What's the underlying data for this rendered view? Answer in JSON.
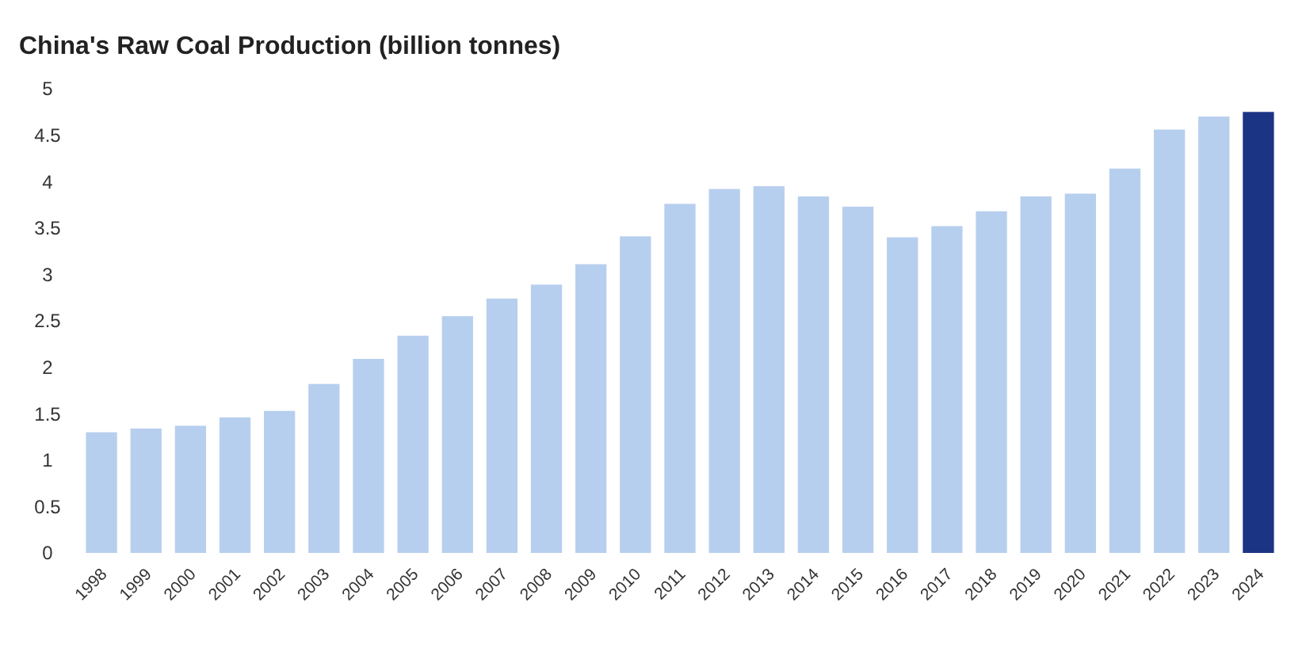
{
  "chart_data": {
    "type": "bar",
    "title": "China's Raw Coal Production (billion tonnes)",
    "categories": [
      "1998",
      "1999",
      "2000",
      "2001",
      "2002",
      "2003",
      "2004",
      "2005",
      "2006",
      "2007",
      "2008",
      "2009",
      "2010",
      "2011",
      "2012",
      "2013",
      "2014",
      "2015",
      "2016",
      "2017",
      "2018",
      "2019",
      "2020",
      "2021",
      "2022",
      "2023",
      "2024"
    ],
    "values": [
      1.3,
      1.34,
      1.37,
      1.46,
      1.53,
      1.82,
      2.09,
      2.34,
      2.55,
      2.74,
      2.89,
      3.11,
      3.41,
      3.76,
      3.92,
      3.95,
      3.84,
      3.73,
      3.4,
      3.52,
      3.68,
      3.84,
      3.87,
      4.14,
      4.56,
      4.7,
      4.75
    ],
    "colors": [
      "#b7cfee",
      "#b7cfee",
      "#b7cfee",
      "#b7cfee",
      "#b7cfee",
      "#b7cfee",
      "#b7cfee",
      "#b7cfee",
      "#b7cfee",
      "#b7cfee",
      "#b7cfee",
      "#b7cfee",
      "#b7cfee",
      "#b7cfee",
      "#b7cfee",
      "#b7cfee",
      "#b7cfee",
      "#b7cfee",
      "#b7cfee",
      "#b7cfee",
      "#b7cfee",
      "#b7cfee",
      "#b7cfee",
      "#b7cfee",
      "#b7cfee",
      "#b7cfee",
      "#1c3484"
    ],
    "ylim": [
      0,
      5
    ],
    "yticks": [
      0,
      0.5,
      1,
      1.5,
      2,
      2.5,
      3,
      3.5,
      4,
      4.5,
      5
    ],
    "grid": false
  }
}
